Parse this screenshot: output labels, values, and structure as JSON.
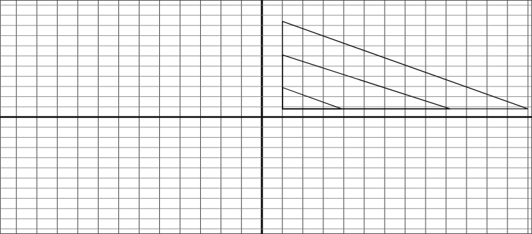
{
  "chart_data": {
    "type": "line",
    "xlim": [
      -12.8,
      13.2
    ],
    "ylim": [
      -11.5,
      11.5
    ],
    "xticks": [
      -12,
      -11,
      -10,
      -9,
      -8,
      -7,
      -6,
      -5,
      -4,
      -3,
      -2,
      -1,
      0,
      1,
      2,
      3,
      4,
      5,
      6,
      7,
      8,
      9,
      10,
      11,
      12,
      13
    ],
    "yticks": [
      -11,
      -10,
      -9,
      -8,
      -7,
      -6,
      -5,
      -4,
      -3,
      -2,
      -1,
      0,
      1,
      2,
      3,
      4,
      5,
      6,
      7,
      8,
      9,
      10,
      11
    ],
    "grid": true,
    "tick_labels": false,
    "series": [
      {
        "color": "#111111",
        "x": [
          1,
          1,
          13,
          1
        ],
        "values": [
          9.4,
          0.8,
          0.8,
          9.4
        ]
      },
      {
        "color": "#111111",
        "x": [
          1,
          1,
          9.2,
          1
        ],
        "values": [
          6.1,
          0.8,
          0.8,
          6.1
        ]
      },
      {
        "color": "#111111",
        "x": [
          1,
          1,
          3.9,
          1
        ],
        "values": [
          2.9,
          0.8,
          0.8,
          2.9
        ]
      }
    ]
  }
}
